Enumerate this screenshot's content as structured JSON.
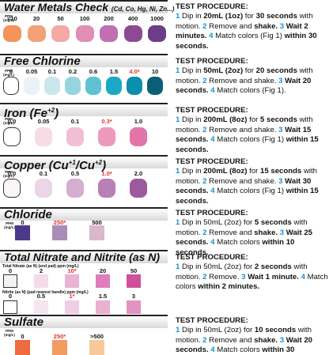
{
  "sections": {
    "water": {
      "title": "Water Metals Check",
      "subtitle": "(Cd, Co, Hg, Ni, Zn...)",
      "ppm": "PPM (mg/L)",
      "labels": [
        "<10",
        "20",
        "50",
        "100",
        "200",
        "400",
        "1000"
      ],
      "colors": [
        "#f4935a",
        "#f2a077",
        "#f4a9a6",
        "#e28db3",
        "#c06fb3",
        "#8d4a94",
        "#6e3d87"
      ],
      "proc": {
        "title": "TEST PROCEDURE:",
        "n1": "1",
        "t1a": " Dip in ",
        "t1b": "20mL (1oz)",
        "t1c": " for ",
        "t1d": "30 seconds",
        "t1e": " with motion. ",
        "n2": "2",
        "t2a": " Remove and ",
        "t2b": "shake.",
        "n3": " 3",
        "t3a": " Wait 2 minutes.",
        "n4": " 4",
        "t4a": " Match colors (Fig 1) ",
        "t4b": "within 30 seconds."
      }
    },
    "chlorine": {
      "title": "Free Chlorine",
      "ppm": "PPM (mg/L)",
      "labels": [
        "0",
        "0.05",
        "0.1",
        "0.2",
        "0.6",
        "1.5",
        "4.0*",
        "10"
      ],
      "colors": [
        "#ffffff",
        "#e9f2f5",
        "#c9e6ec",
        "#98d4e0",
        "#5ec2d3",
        "#19a9c6",
        "#0a8fae",
        "#0b5f74"
      ],
      "proc": {
        "title": "TEST PROCEDURE:",
        "n1": "1",
        "t1a": " Dip in ",
        "t1b": "50mL (2oz)",
        "t1c": " for ",
        "t1d": "20 seconds",
        "t1e": " with motion. ",
        "n2": "2",
        "t2a": " Remove and shake. ",
        "n3": "3",
        "t3a": " Wait 20 seconds. ",
        "n4": "4",
        "t4a": " Match colors (Fig 1)."
      }
    },
    "iron": {
      "title": "Iron (Fe",
      "sup": "+2",
      "title_end": ")",
      "ppm": "PPM (mg/L)",
      "labels": [
        "0.0",
        "0.05",
        "0.1",
        "0.3*",
        "1.0"
      ],
      "colors": [
        "#ffffff",
        "#f6dce6",
        "#f1bfd4",
        "#ec99bd",
        "#e274a8"
      ],
      "proc": {
        "title": "TEST PROCEDURE:",
        "n1": "1",
        "t1a": " Dip in ",
        "t1b": "200mL (8oz)",
        "t1c": " for ",
        "t1d": "5 seconds",
        "t1e": " with motion. ",
        "n2": "2",
        "t2a": " Remove and shake. ",
        "n3": "3",
        "t3a": " Wait 15 seconds. ",
        "n4": "4",
        "t4a": " Match colors (Fig 1) ",
        "t4b": "within 15 seconds."
      }
    },
    "copper": {
      "title": "Copper (Cu",
      "sup1": "+1",
      "mid": "/Cu",
      "sup2": "+2",
      "title_end": ")",
      "ppm": "PPM (mg/L)",
      "labels": [
        "0.0",
        "0.1",
        "0.5",
        "1.0*",
        "2.0"
      ],
      "colors": [
        "#fbf5f9",
        "#ead6e6",
        "#d5aed0",
        "#b97fb7",
        "#9c5a9e"
      ],
      "proc": {
        "title": "TEST PROCEDURE:",
        "n1": "1",
        "t1a": " Dip in ",
        "t1b": "200mL (8oz)",
        "t1c": " for ",
        "t1d": "15 seconds",
        "t1e": " with motion. ",
        "n2": "2",
        "t2a": " Remove and shake. ",
        "n3": "3",
        "t3a": " Wait 30 seconds. ",
        "n4": "4",
        "t4a": " Match colors (Fig 1) ",
        "t4b": "within 15 seconds."
      }
    },
    "chloride": {
      "title": "Chloride",
      "ppm": "PPM (mg/L)",
      "labels": [
        "0",
        "250*",
        "500"
      ],
      "colors": [
        "#4b3a8c",
        "#a98cb8",
        "#d9b8c8"
      ],
      "proc": {
        "title": "TEST PROCEDURE:",
        "n1": "1",
        "t1a": " Dip in ",
        "t1b": "50mL (2oz)",
        "t1c": " for ",
        "t1d": "5 seconds",
        "t1e": " with motion. ",
        "n2": "2",
        "t2a": " Remove and ",
        "t2b": "shake.",
        "n3": " 3",
        "t3a": " Wait 25 seconds. ",
        "n4": "4",
        "t4a": " Match colors ",
        "t4b": "within 10 seconds."
      }
    },
    "nitrate": {
      "title": "Total Nitrate and Nitrite (as N)",
      "row1_label": "Total Nitrate (as N) (end pad) ppm (mg/L)",
      "row1_values": [
        "0",
        "2",
        "10*",
        "20",
        "50"
      ],
      "row1_colors": [
        "#f4f2f4",
        "#f3dbe9",
        "#eab3d3",
        "#e07dbc",
        "#d0509f"
      ],
      "row2_label": "Nitrite (as N) (pad nearest handle) ppm (mg/L)",
      "row2_values": [
        "0",
        "0.5",
        "1*",
        "1.5",
        "3"
      ],
      "row2_colors": [
        "#ffffff",
        "#f5e5ee",
        "#f0cde2",
        "#e9b0d2",
        "#e193c2"
      ],
      "proc": {
        "title": "TEST PROCEDURE:",
        "n1": "1",
        "t1a": " Dip in ",
        "t1b": "50mL (2oz)",
        "t1c": " for ",
        "t1d": "2 seconds",
        "t1e": " with motion. ",
        "n2": "2",
        "t2a": " Remove. ",
        "n3": "3",
        "t3a": " Wait 1 minute. ",
        "n4": "4",
        "t4a": " Match colors ",
        "t4b": "within 2 minutes."
      }
    },
    "sulfate": {
      "title": "Sulfate",
      "ppm": "PPM (mg/L)",
      "labels": [
        "0",
        "250*",
        ">500"
      ],
      "colors": [
        "#ef6a3c",
        "#f39a63",
        "#f8c89a"
      ],
      "proc": {
        "title": "TEST PROCEDURE:",
        "n1": "1",
        "t1a": " Dip in ",
        "t1b": "50mL (2oz)",
        "t1c": " for ",
        "t1d": "10 seconds",
        "t1e": " with motion. ",
        "n2": "2",
        "t2a": " Remove and ",
        "t2b": "shake.",
        "n3": " 3",
        "t3a": " Wait 20 seconds. ",
        "n4": "4",
        "t4a": " Match colors ",
        "t4b": "within 30 seconds."
      }
    }
  }
}
